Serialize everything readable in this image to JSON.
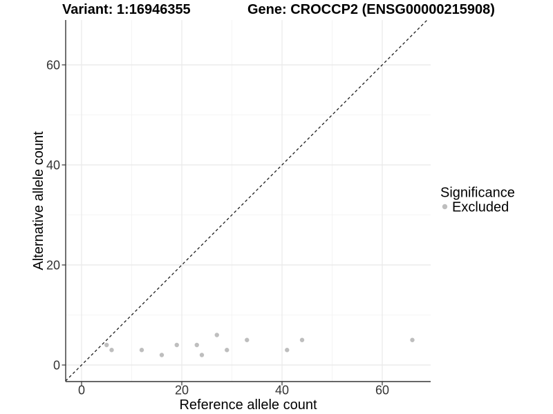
{
  "chart_data": {
    "type": "scatter",
    "titles": {
      "left": "Variant: 1:16946355",
      "right": "Gene: CROCCP2 (ENSG00000215908)"
    },
    "xlabel": "Reference allele count",
    "ylabel": "Alternative allele count",
    "xlim": [
      -3.2,
      69.7
    ],
    "ylim": [
      -3.3,
      69.0
    ],
    "xticks": [
      0,
      20,
      40,
      60
    ],
    "yticks": [
      0,
      20,
      40,
      60
    ],
    "minor_xticks": [
      10,
      30,
      50
    ],
    "minor_yticks": [
      10,
      30,
      50
    ],
    "grid": true,
    "reference_line": {
      "type": "identity",
      "style": "dashed"
    },
    "series": [
      {
        "name": "Excluded",
        "color": "#BEBEBE",
        "points": [
          [
            5,
            4
          ],
          [
            6,
            3
          ],
          [
            12,
            3
          ],
          [
            16,
            2
          ],
          [
            19,
            4
          ],
          [
            23,
            4
          ],
          [
            24,
            2
          ],
          [
            27,
            6
          ],
          [
            29,
            3
          ],
          [
            33,
            5
          ],
          [
            41,
            3
          ],
          [
            44,
            5
          ],
          [
            66,
            5
          ]
        ]
      }
    ],
    "legend": {
      "title": "Significance",
      "position": "right",
      "entries": [
        {
          "label": "Excluded",
          "color": "#BEBEBE"
        }
      ]
    }
  },
  "colors": {
    "background": "#ffffff",
    "grid_major": "#E8E8E8",
    "grid_minor": "#F2F2F2",
    "axis_line": "#333333",
    "reference_line": "#1a1a1a",
    "tick_label": "#333333",
    "point": "#BEBEBE"
  }
}
